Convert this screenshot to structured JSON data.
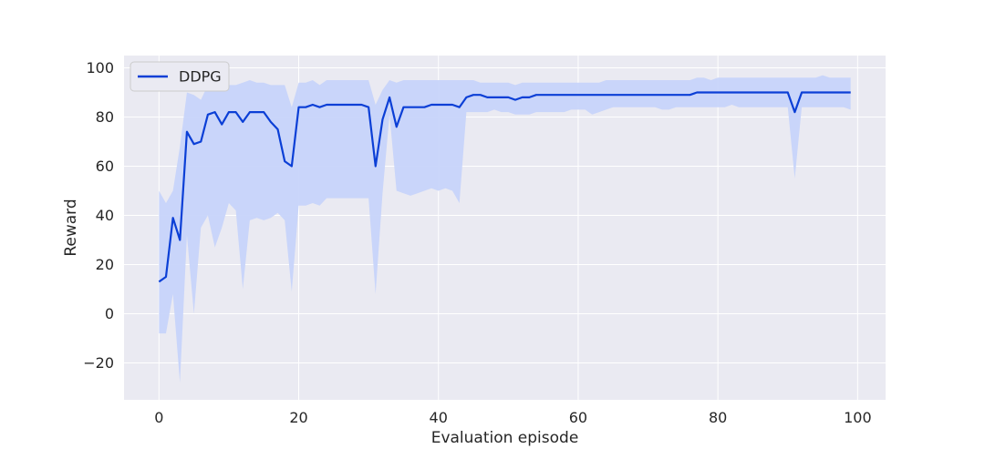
{
  "chart_data": {
    "type": "line",
    "xlabel": "Evaluation episode",
    "ylabel": "Reward",
    "xlim": [
      -5,
      104
    ],
    "ylim": [
      -35,
      105
    ],
    "xticks": [
      0,
      20,
      40,
      60,
      80,
      100
    ],
    "yticks": [
      -20,
      0,
      20,
      40,
      60,
      80,
      100
    ],
    "grid": true,
    "legend_position": "upper-left",
    "colors": {
      "line": "#0b3fd6",
      "band": "#c7d4fa",
      "background": "#eaeaf2",
      "grid": "#ffffff"
    },
    "series": [
      {
        "name": "DDPG",
        "x": [
          0,
          1,
          2,
          3,
          4,
          5,
          6,
          7,
          8,
          9,
          10,
          11,
          12,
          13,
          14,
          15,
          16,
          17,
          18,
          19,
          20,
          21,
          22,
          23,
          24,
          25,
          26,
          27,
          28,
          29,
          30,
          31,
          32,
          33,
          34,
          35,
          36,
          37,
          38,
          39,
          40,
          41,
          42,
          43,
          44,
          45,
          46,
          47,
          48,
          49,
          50,
          51,
          52,
          53,
          54,
          55,
          56,
          57,
          58,
          59,
          60,
          61,
          62,
          63,
          64,
          65,
          66,
          67,
          68,
          69,
          70,
          71,
          72,
          73,
          74,
          75,
          76,
          77,
          78,
          79,
          80,
          81,
          82,
          83,
          84,
          85,
          86,
          87,
          88,
          89,
          90,
          91,
          92,
          93,
          94,
          95,
          96,
          97,
          98,
          99
        ],
        "mean": [
          13,
          15,
          39,
          30,
          74,
          69,
          70,
          81,
          82,
          77,
          82,
          82,
          78,
          82,
          82,
          82,
          78,
          75,
          62,
          60,
          84,
          84,
          85,
          84,
          85,
          85,
          85,
          85,
          85,
          85,
          84,
          60,
          79,
          88,
          76,
          84,
          84,
          84,
          84,
          85,
          85,
          85,
          85,
          84,
          88,
          89,
          89,
          88,
          88,
          88,
          88,
          87,
          88,
          88,
          89,
          89,
          89,
          89,
          89,
          89,
          89,
          89,
          89,
          89,
          89,
          89,
          89,
          89,
          89,
          89,
          89,
          89,
          89,
          89,
          89,
          89,
          89,
          90,
          90,
          90,
          90,
          90,
          90,
          90,
          90,
          90,
          90,
          90,
          90,
          90,
          90,
          82,
          90,
          90,
          90,
          90,
          90,
          90,
          90,
          90
        ],
        "upper": [
          50,
          45,
          50,
          68,
          90,
          89,
          87,
          93,
          94,
          91,
          93,
          93,
          94,
          95,
          94,
          94,
          93,
          93,
          93,
          84,
          94,
          94,
          95,
          93,
          95,
          95,
          95,
          95,
          95,
          95,
          95,
          85,
          91,
          95,
          94,
          95,
          95,
          95,
          95,
          95,
          95,
          95,
          95,
          95,
          95,
          95,
          94,
          94,
          94,
          94,
          94,
          93,
          94,
          94,
          94,
          94,
          94,
          94,
          94,
          94,
          94,
          94,
          94,
          94,
          95,
          95,
          95,
          95,
          95,
          95,
          95,
          95,
          95,
          95,
          95,
          95,
          95,
          96,
          96,
          95,
          96,
          96,
          96,
          96,
          96,
          96,
          96,
          96,
          96,
          96,
          96,
          96,
          96,
          96,
          96,
          97,
          96,
          96,
          96,
          96
        ],
        "lower": [
          -8,
          -8,
          8,
          -28,
          32,
          0,
          35,
          40,
          27,
          35,
          45,
          42,
          10,
          38,
          39,
          38,
          39,
          41,
          38,
          9,
          44,
          44,
          45,
          44,
          47,
          47,
          47,
          47,
          47,
          47,
          47,
          8,
          49,
          81,
          50,
          49,
          48,
          49,
          50,
          51,
          50,
          51,
          50,
          45,
          82,
          82,
          82,
          82,
          83,
          82,
          82,
          81,
          81,
          81,
          82,
          82,
          82,
          82,
          82,
          83,
          83,
          83,
          81,
          82,
          83,
          84,
          84,
          84,
          84,
          84,
          84,
          84,
          83,
          83,
          84,
          84,
          84,
          84,
          84,
          84,
          84,
          84,
          85,
          84,
          84,
          84,
          84,
          84,
          84,
          84,
          84,
          55,
          84,
          84,
          84,
          84,
          84,
          84,
          84,
          83
        ]
      }
    ]
  }
}
